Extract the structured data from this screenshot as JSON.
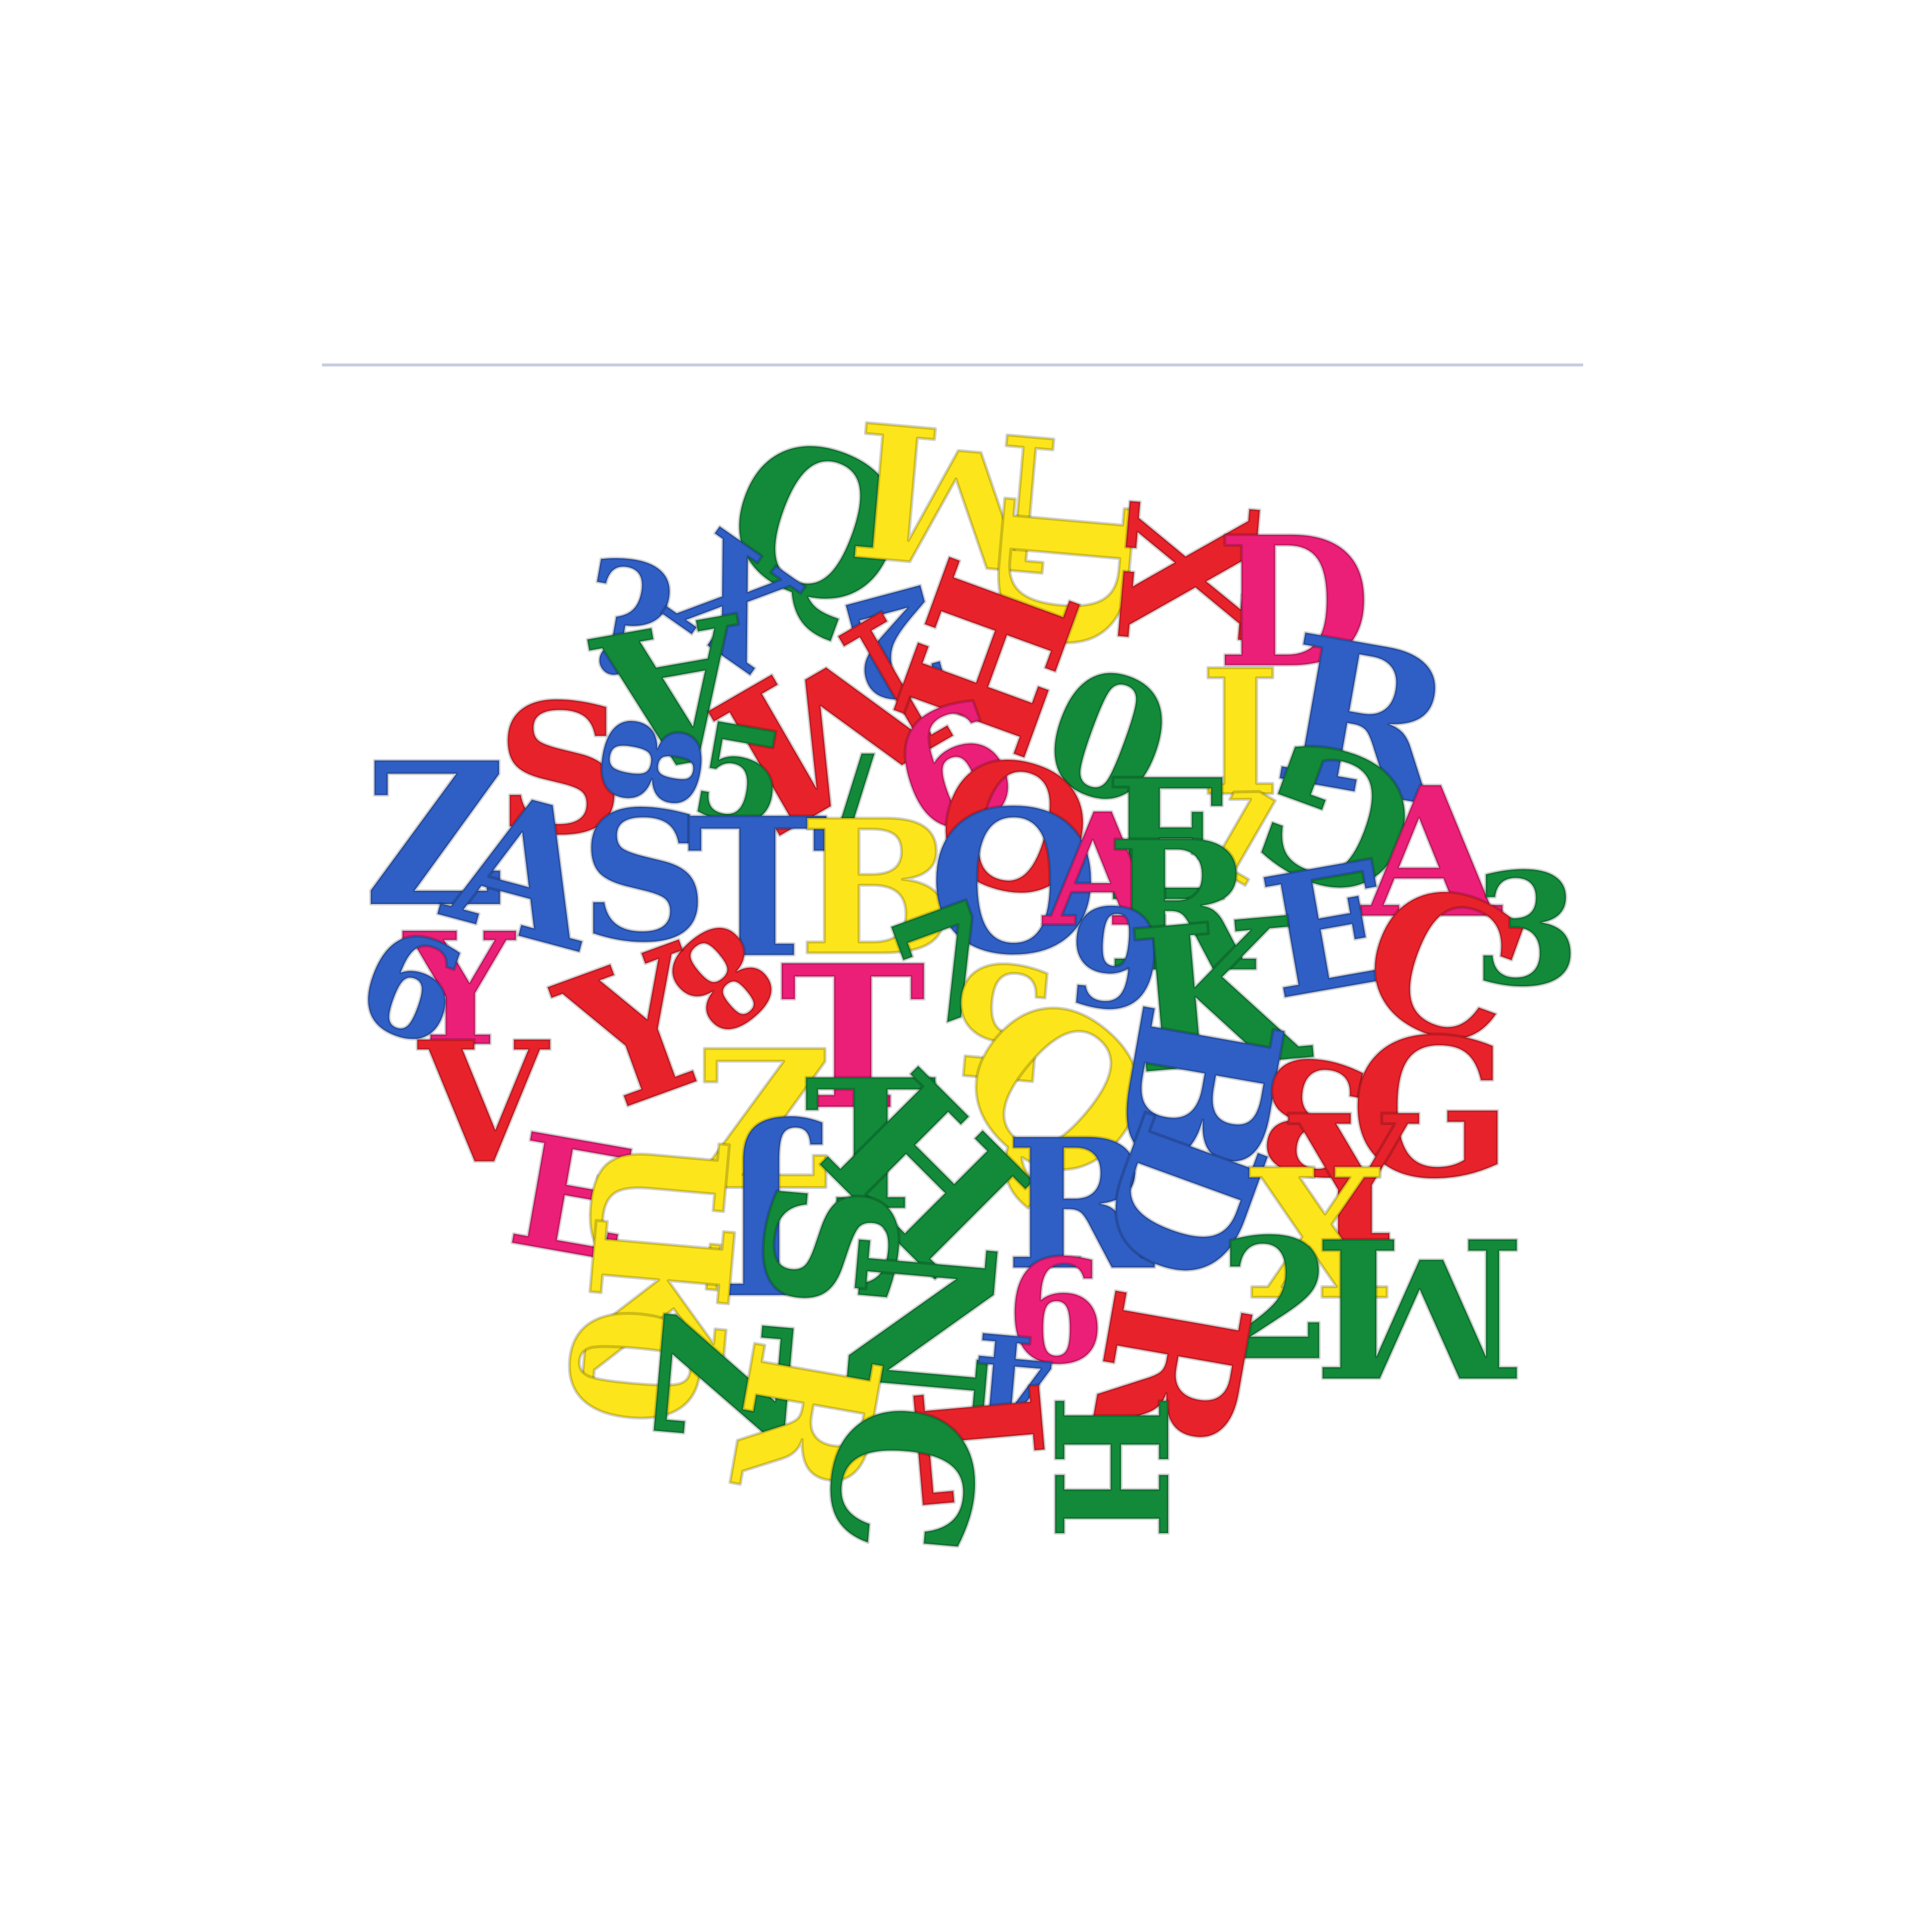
{
  "palette": {
    "background": "#ffffff",
    "rule": "#c9cce0",
    "red": "#e8222b",
    "blue": "#2f5fc4",
    "green": "#128a3a",
    "yellow": "#fce51a",
    "pink": "#ec1f78"
  },
  "letters": [
    {
      "ch": "Q",
      "color": "green",
      "rot": 20
    },
    {
      "ch": "M",
      "color": "yellow",
      "rot": 185
    },
    {
      "ch": "D",
      "color": "yellow",
      "rot": 95
    },
    {
      "ch": "X",
      "color": "red",
      "rot": 95
    },
    {
      "ch": "D",
      "color": "pink",
      "rot": 0
    },
    {
      "ch": "?",
      "color": "blue",
      "rot": 10
    },
    {
      "ch": "X",
      "color": "blue",
      "rot": 35
    },
    {
      "ch": "A",
      "color": "green",
      "rot": 170
    },
    {
      "ch": "2",
      "color": "blue",
      "rot": 165
    },
    {
      "ch": "M",
      "color": "red",
      "rot": 150
    },
    {
      "ch": "H",
      "color": "red",
      "rot": 110
    },
    {
      "ch": "R",
      "color": "blue",
      "rot": 10
    },
    {
      "ch": "S",
      "color": "red",
      "rot": 0
    },
    {
      "ch": "8",
      "color": "blue",
      "rot": 100
    },
    {
      "ch": "5",
      "color": "green",
      "rot": 10
    },
    {
      "ch": "6",
      "color": "pink",
      "rot": -20
    },
    {
      "ch": "0",
      "color": "green",
      "rot": 200
    },
    {
      "ch": "I",
      "color": "yellow",
      "rot": 0
    },
    {
      "ch": "Z",
      "color": "blue",
      "rot": 0
    },
    {
      "ch": "/",
      "color": "green",
      "rot": 0
    },
    {
      "ch": "O",
      "color": "red",
      "rot": 15
    },
    {
      "ch": "E",
      "color": "green",
      "rot": 0
    },
    {
      "ch": "1",
      "color": "yellow",
      "rot": 30
    },
    {
      "ch": "G",
      "color": "green",
      "rot": 200
    },
    {
      "ch": "A",
      "color": "pink",
      "rot": 0
    },
    {
      "ch": "A",
      "color": "blue",
      "rot": 15
    },
    {
      "ch": "S",
      "color": "blue",
      "rot": 0
    },
    {
      "ch": "T",
      "color": "blue",
      "rot": 0
    },
    {
      "ch": "B",
      "color": "yellow",
      "rot": 0
    },
    {
      "ch": "O",
      "color": "blue",
      "rot": 0
    },
    {
      "ch": "A",
      "color": "pink",
      "rot": 0
    },
    {
      "ch": "R",
      "color": "green",
      "rot": 0
    },
    {
      "ch": "E",
      "color": "blue",
      "rot": -10
    },
    {
      "ch": "C",
      "color": "red",
      "rot": 20
    },
    {
      "ch": "3",
      "color": "green",
      "rot": 0
    },
    {
      "ch": "Y",
      "color": "pink",
      "rot": 0
    },
    {
      "ch": "9",
      "color": "blue",
      "rot": 200
    },
    {
      "ch": "8",
      "color": "red",
      "rot": 140
    },
    {
      "ch": "7",
      "color": "green",
      "rot": -20
    },
    {
      "ch": "9",
      "color": "blue",
      "rot": 5
    },
    {
      "ch": "K",
      "color": "green",
      "rot": -5
    },
    {
      "ch": "Y",
      "color": "red",
      "rot": -20
    },
    {
      "ch": "T",
      "color": "pink",
      "rot": 0
    },
    {
      "ch": "5",
      "color": "yellow",
      "rot": 185
    },
    {
      "ch": "Q",
      "color": "yellow",
      "rot": 40
    },
    {
      "ch": "B",
      "color": "blue",
      "rot": 100
    },
    {
      "ch": "3",
      "color": "red",
      "rot": 190
    },
    {
      "ch": "G",
      "color": "red",
      "rot": 0
    },
    {
      "ch": "Y",
      "color": "red",
      "rot": 0
    },
    {
      "ch": "V",
      "color": "red",
      "rot": 0
    },
    {
      "ch": "Z",
      "color": "yellow",
      "rot": 0
    },
    {
      "ch": "T",
      "color": "green",
      "rot": 0
    },
    {
      "ch": "H",
      "color": "green",
      "rot": 45
    },
    {
      "ch": "R",
      "color": "blue",
      "rot": 0
    },
    {
      "ch": "D",
      "color": "blue",
      "rot": 110
    },
    {
      "ch": "X",
      "color": "yellow",
      "rot": 0
    },
    {
      "ch": "E",
      "color": "pink",
      "rot": 10
    },
    {
      "ch": "U",
      "color": "yellow",
      "rot": 95
    },
    {
      "ch": "J",
      "color": "blue",
      "rot": 180
    },
    {
      "ch": "S",
      "color": "green",
      "rot": 95
    },
    {
      "ch": "K",
      "color": "yellow",
      "rot": 95
    },
    {
      "ch": "N",
      "color": "green",
      "rot": 95
    },
    {
      "ch": "6",
      "color": "pink",
      "rot": 0
    },
    {
      "ch": "2",
      "color": "green",
      "rot": 0
    },
    {
      "ch": "M",
      "color": "green",
      "rot": 180
    },
    {
      "ch": "0",
      "color": "yellow",
      "rot": 95
    },
    {
      "ch": "Z",
      "color": "green",
      "rot": 95
    },
    {
      "ch": "R",
      "color": "yellow",
      "rot": 100
    },
    {
      "ch": "4",
      "color": "blue",
      "rot": 185
    },
    {
      "ch": "R",
      "color": "red",
      "rot": 100
    },
    {
      "ch": "L",
      "color": "red",
      "rot": 85
    },
    {
      "ch": "C",
      "color": "green",
      "rot": 95
    },
    {
      "ch": "H",
      "color": "green",
      "rot": 90
    }
  ]
}
